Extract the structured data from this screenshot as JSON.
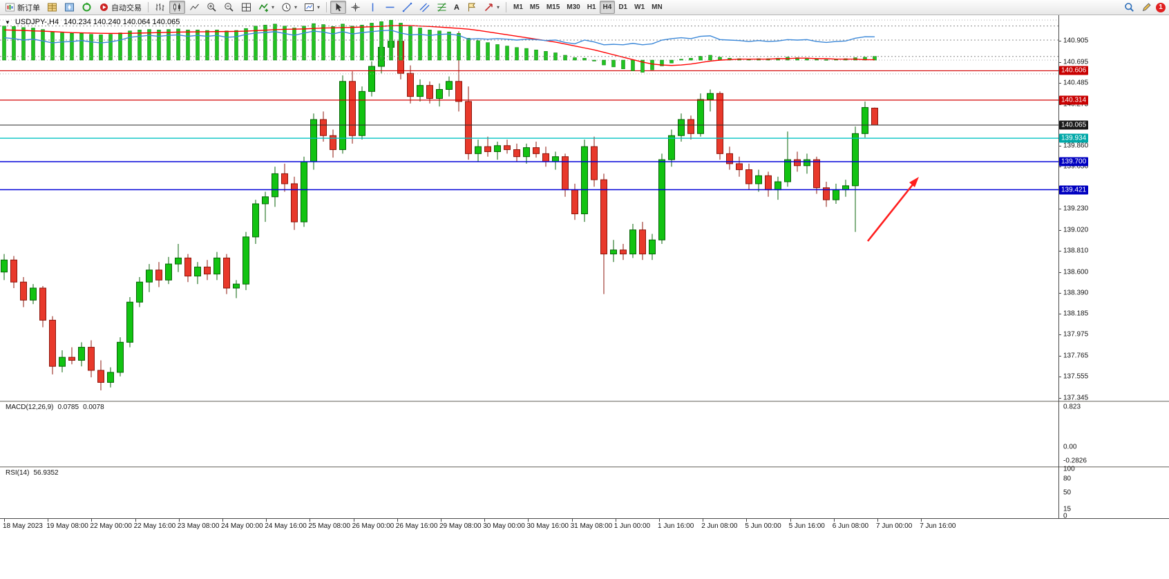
{
  "toolbar": {
    "new_order_label": "新订单",
    "auto_trading_label": "自动交易",
    "text_tool_label": "A",
    "timeframes": [
      "M1",
      "M5",
      "M15",
      "M30",
      "H1",
      "H4",
      "D1",
      "W1",
      "MN"
    ],
    "active_timeframe": "H4",
    "notification_badge": "1"
  },
  "chart_header": {
    "symbol": "USDJPY-,H4",
    "ohlc": "140.234 140.240 140.064 140.065"
  },
  "price_axis": {
    "ticks": [
      "140.905",
      "140.695",
      "140.485",
      "140.275",
      "139.860",
      "139.650",
      "139.230",
      "139.020",
      "138.810",
      "138.600",
      "138.390",
      "138.185",
      "137.975",
      "137.765",
      "137.555",
      "137.345"
    ]
  },
  "price_lines": [
    {
      "price": 140.606,
      "color": "#d40000",
      "badge": "#c80000",
      "width": 1.2
    },
    {
      "price": 140.314,
      "color": "#d40000",
      "badge": "#c80000",
      "width": 1.2
    },
    {
      "price": 140.065,
      "color": "#2a2a2a",
      "badge": "#1a1a1a",
      "width": 1
    },
    {
      "price": 139.934,
      "color": "#00c2c2",
      "badge": "#00a8a8",
      "width": 1.4
    },
    {
      "price": 139.7,
      "color": "#0000d8",
      "badge": "#0000c0",
      "width": 1.4
    },
    {
      "price": 139.421,
      "color": "#0000d8",
      "badge": "#0000c0",
      "width": 1.4
    }
  ],
  "time_axis": {
    "labels": [
      "18 May 2023",
      "19 May 08:00",
      "22 May 00:00",
      "22 May 16:00",
      "23 May 08:00",
      "24 May 00:00",
      "24 May 16:00",
      "25 May 08:00",
      "26 May 00:00",
      "26 May 16:00",
      "29 May 08:00",
      "30 May 00:00",
      "30 May 16:00",
      "31 May 08:00",
      "1 Jun 00:00",
      "1 Jun 16:00",
      "2 Jun 08:00",
      "5 Jun 00:00",
      "5 Jun 16:00",
      "6 Jun 08:00",
      "7 Jun 00:00",
      "7 Jun 16:00"
    ]
  },
  "indicators": {
    "macd": {
      "label": "MACD(12,26,9)",
      "value_main": "0.0785",
      "value_signal": "0.0078",
      "axis": [
        {
          "v": 0.823,
          "label": "0.823"
        },
        {
          "v": 0,
          "label": "0.00"
        },
        {
          "v": -0.2826,
          "label": "-0.2826"
        }
      ]
    },
    "rsi": {
      "label": "RSI(14)",
      "value": "56.9352",
      "levels": [
        80,
        50,
        15
      ],
      "axis": [
        {
          "v": 100,
          "label": "100"
        },
        {
          "v": 80,
          "label": "80"
        },
        {
          "v": 50,
          "label": "50"
        },
        {
          "v": 15,
          "label": "15"
        },
        {
          "v": 0,
          "label": "0"
        }
      ]
    }
  },
  "annotation": {
    "type": "arrow-up-right",
    "color": "#ff1e1e"
  },
  "colors": {
    "bull": "#12c312",
    "bull_border": "#076307",
    "bear": "#e8392b",
    "bear_border": "#8c150b",
    "macd_hist": "#22c322",
    "macd_hist_border": "#0b7a0b",
    "macd_signal": "#ff0000",
    "rsi_line": "#3a87d8"
  },
  "chart_data": {
    "type": "candlestick",
    "symbol": "USDJPY-",
    "timeframe": "H4",
    "current_ohlc": {
      "open": 140.234,
      "high": 140.24,
      "low": 140.064,
      "close": 140.065
    },
    "candles": [
      [
        138.6,
        138.78,
        138.52,
        138.72
      ],
      [
        138.72,
        138.76,
        138.44,
        138.5
      ],
      [
        138.5,
        138.55,
        138.25,
        138.32
      ],
      [
        138.32,
        138.48,
        138.28,
        138.44
      ],
      [
        138.44,
        138.46,
        138.05,
        138.12
      ],
      [
        138.12,
        138.16,
        137.58,
        137.66
      ],
      [
        137.66,
        137.82,
        137.6,
        137.75
      ],
      [
        137.75,
        137.85,
        137.68,
        137.72
      ],
      [
        137.72,
        137.9,
        137.66,
        137.85
      ],
      [
        137.85,
        137.92,
        137.55,
        137.62
      ],
      [
        137.62,
        137.72,
        137.42,
        137.5
      ],
      [
        137.5,
        137.65,
        137.45,
        137.6
      ],
      [
        137.6,
        137.95,
        137.56,
        137.9
      ],
      [
        137.9,
        138.35,
        137.85,
        138.3
      ],
      [
        138.3,
        138.55,
        138.25,
        138.5
      ],
      [
        138.5,
        138.68,
        138.4,
        138.62
      ],
      [
        138.62,
        138.7,
        138.45,
        138.52
      ],
      [
        138.52,
        138.75,
        138.48,
        138.68
      ],
      [
        138.68,
        138.88,
        138.6,
        138.74
      ],
      [
        138.74,
        138.78,
        138.5,
        138.56
      ],
      [
        138.56,
        138.7,
        138.48,
        138.65
      ],
      [
        138.65,
        138.72,
        138.52,
        138.58
      ],
      [
        138.58,
        138.8,
        138.52,
        138.74
      ],
      [
        138.74,
        138.78,
        138.38,
        138.44
      ],
      [
        138.44,
        138.52,
        138.34,
        138.48
      ],
      [
        138.48,
        139.0,
        138.42,
        138.95
      ],
      [
        138.95,
        139.32,
        138.88,
        139.28
      ],
      [
        139.28,
        139.4,
        139.1,
        139.35
      ],
      [
        139.35,
        139.65,
        139.25,
        139.58
      ],
      [
        139.58,
        139.68,
        139.4,
        139.48
      ],
      [
        139.48,
        139.55,
        139.02,
        139.1
      ],
      [
        139.1,
        139.75,
        139.05,
        139.7
      ],
      [
        139.7,
        140.18,
        139.62,
        140.12
      ],
      [
        140.12,
        140.2,
        139.9,
        139.96
      ],
      [
        139.96,
        140.02,
        139.74,
        139.82
      ],
      [
        139.82,
        140.56,
        139.78,
        140.5
      ],
      [
        140.5,
        140.6,
        139.88,
        139.96
      ],
      [
        139.96,
        140.45,
        139.92,
        140.4
      ],
      [
        140.4,
        140.7,
        140.35,
        140.65
      ],
      [
        140.65,
        140.88,
        140.58,
        140.84
      ],
      [
        140.84,
        140.97,
        140.78,
        140.9
      ],
      [
        140.9,
        140.93,
        140.52,
        140.58
      ],
      [
        140.58,
        140.66,
        140.28,
        140.35
      ],
      [
        140.35,
        140.52,
        140.3,
        140.46
      ],
      [
        140.46,
        140.5,
        140.28,
        140.33
      ],
      [
        140.33,
        140.48,
        140.25,
        140.42
      ],
      [
        140.42,
        140.55,
        140.35,
        140.5
      ],
      [
        140.5,
        141.0,
        140.2,
        140.3
      ],
      [
        140.3,
        140.45,
        139.72,
        139.78
      ],
      [
        139.78,
        139.92,
        139.7,
        139.85
      ],
      [
        139.85,
        139.95,
        139.75,
        139.8
      ],
      [
        139.8,
        139.9,
        139.72,
        139.86
      ],
      [
        139.86,
        139.92,
        139.78,
        139.82
      ],
      [
        139.82,
        139.88,
        139.7,
        139.75
      ],
      [
        139.75,
        139.88,
        139.68,
        139.84
      ],
      [
        139.84,
        139.9,
        139.74,
        139.78
      ],
      [
        139.78,
        139.85,
        139.65,
        139.7
      ],
      [
        139.7,
        139.8,
        139.62,
        139.75
      ],
      [
        139.75,
        139.78,
        139.35,
        139.42
      ],
      [
        139.42,
        139.48,
        139.12,
        139.18
      ],
      [
        139.18,
        139.92,
        139.1,
        139.85
      ],
      [
        139.85,
        139.95,
        139.45,
        139.52
      ],
      [
        139.52,
        139.58,
        138.38,
        138.78
      ],
      [
        138.78,
        138.92,
        138.7,
        138.82
      ],
      [
        138.82,
        138.88,
        138.72,
        138.78
      ],
      [
        138.78,
        139.08,
        138.74,
        139.02
      ],
      [
        139.02,
        139.1,
        138.72,
        138.78
      ],
      [
        138.78,
        138.98,
        138.72,
        138.92
      ],
      [
        138.92,
        139.78,
        138.88,
        139.72
      ],
      [
        139.72,
        140.02,
        139.65,
        139.96
      ],
      [
        139.96,
        140.18,
        139.9,
        140.12
      ],
      [
        140.12,
        140.16,
        139.92,
        139.98
      ],
      [
        139.98,
        140.38,
        139.95,
        140.32
      ],
      [
        140.32,
        140.42,
        140.2,
        140.38
      ],
      [
        140.38,
        140.4,
        139.72,
        139.78
      ],
      [
        139.78,
        139.85,
        139.62,
        139.68
      ],
      [
        139.68,
        139.75,
        139.55,
        139.62
      ],
      [
        139.62,
        139.68,
        139.42,
        139.48
      ],
      [
        139.48,
        139.62,
        139.4,
        139.56
      ],
      [
        139.56,
        139.6,
        139.35,
        139.42
      ],
      [
        139.42,
        139.55,
        139.32,
        139.5
      ],
      [
        139.5,
        140.0,
        139.45,
        139.72
      ],
      [
        139.72,
        139.8,
        139.6,
        139.66
      ],
      [
        139.66,
        139.78,
        139.58,
        139.72
      ],
      [
        139.72,
        139.75,
        139.38,
        139.44
      ],
      [
        139.44,
        139.5,
        139.25,
        139.32
      ],
      [
        139.32,
        139.48,
        139.28,
        139.42
      ],
      [
        139.42,
        139.52,
        139.35,
        139.46
      ],
      [
        139.46,
        140.05,
        139.0,
        139.98
      ],
      [
        139.98,
        140.3,
        139.94,
        140.24
      ],
      [
        140.234,
        140.24,
        140.064,
        140.065
      ]
    ],
    "macd": {
      "histogram": [
        0.7,
        0.69,
        0.67,
        0.66,
        0.63,
        0.58,
        0.56,
        0.55,
        0.55,
        0.53,
        0.52,
        0.53,
        0.56,
        0.6,
        0.62,
        0.63,
        0.62,
        0.63,
        0.64,
        0.62,
        0.62,
        0.61,
        0.62,
        0.6,
        0.61,
        0.65,
        0.7,
        0.72,
        0.74,
        0.7,
        0.66,
        0.7,
        0.75,
        0.73,
        0.69,
        0.74,
        0.7,
        0.72,
        0.76,
        0.79,
        0.82,
        0.76,
        0.69,
        0.66,
        0.62,
        0.6,
        0.58,
        0.55,
        0.45,
        0.4,
        0.36,
        0.32,
        0.29,
        0.26,
        0.24,
        0.21,
        0.18,
        0.15,
        0.1,
        0.05,
        0.04,
        -0.02,
        -0.1,
        -0.14,
        -0.18,
        -0.22,
        -0.25,
        -0.2,
        -0.12,
        -0.06,
        0.02,
        0.04,
        0.08,
        0.1,
        0.06,
        0.04,
        0.03,
        0.02,
        0.03,
        0.03,
        0.04,
        0.06,
        0.05,
        0.04,
        0.02,
        0.01,
        0.02,
        0.03,
        0.05,
        0.06,
        0.0785
      ],
      "signal": [
        0.62,
        0.615,
        0.61,
        0.6,
        0.595,
        0.585,
        0.575,
        0.565,
        0.56,
        0.555,
        0.55,
        0.548,
        0.548,
        0.55,
        0.555,
        0.56,
        0.565,
        0.57,
        0.575,
        0.578,
        0.58,
        0.582,
        0.585,
        0.587,
        0.59,
        0.595,
        0.605,
        0.615,
        0.625,
        0.632,
        0.635,
        0.64,
        0.65,
        0.658,
        0.662,
        0.668,
        0.672,
        0.678,
        0.685,
        0.695,
        0.705,
        0.71,
        0.708,
        0.7,
        0.69,
        0.678,
        0.665,
        0.652,
        0.635,
        0.61,
        0.58,
        0.55,
        0.52,
        0.49,
        0.46,
        0.43,
        0.4,
        0.37,
        0.33,
        0.29,
        0.25,
        0.21,
        0.16,
        0.11,
        0.06,
        0.01,
        -0.04,
        -0.08,
        -0.1,
        -0.11,
        -0.1,
        -0.08,
        -0.05,
        -0.02,
        0.0,
        0.01,
        0.02,
        0.02,
        0.02,
        0.02,
        0.03,
        0.03,
        0.04,
        0.04,
        0.03,
        0.03,
        0.02,
        0.02,
        0.02,
        0.01,
        0.0078
      ]
    },
    "rsi_series": [
      55,
      53,
      50,
      52,
      48,
      44,
      46,
      47,
      49,
      46,
      44,
      46,
      50,
      56,
      58,
      60,
      58,
      60,
      61,
      58,
      60,
      58,
      60,
      56,
      57,
      62,
      65,
      66,
      68,
      64,
      60,
      65,
      69,
      67,
      63,
      68,
      63,
      66,
      68,
      70,
      71,
      65,
      61,
      62,
      60,
      62,
      63,
      60,
      52,
      53,
      52,
      53,
      52,
      50,
      52,
      51,
      49,
      50,
      45,
      42,
      50,
      46,
      40,
      41,
      40,
      43,
      40,
      42,
      50,
      53,
      55,
      53,
      58,
      59,
      51,
      50,
      49,
      47,
      49,
      47,
      48,
      51,
      50,
      51,
      47,
      45,
      47,
      48,
      54,
      57,
      56.94
    ]
  }
}
